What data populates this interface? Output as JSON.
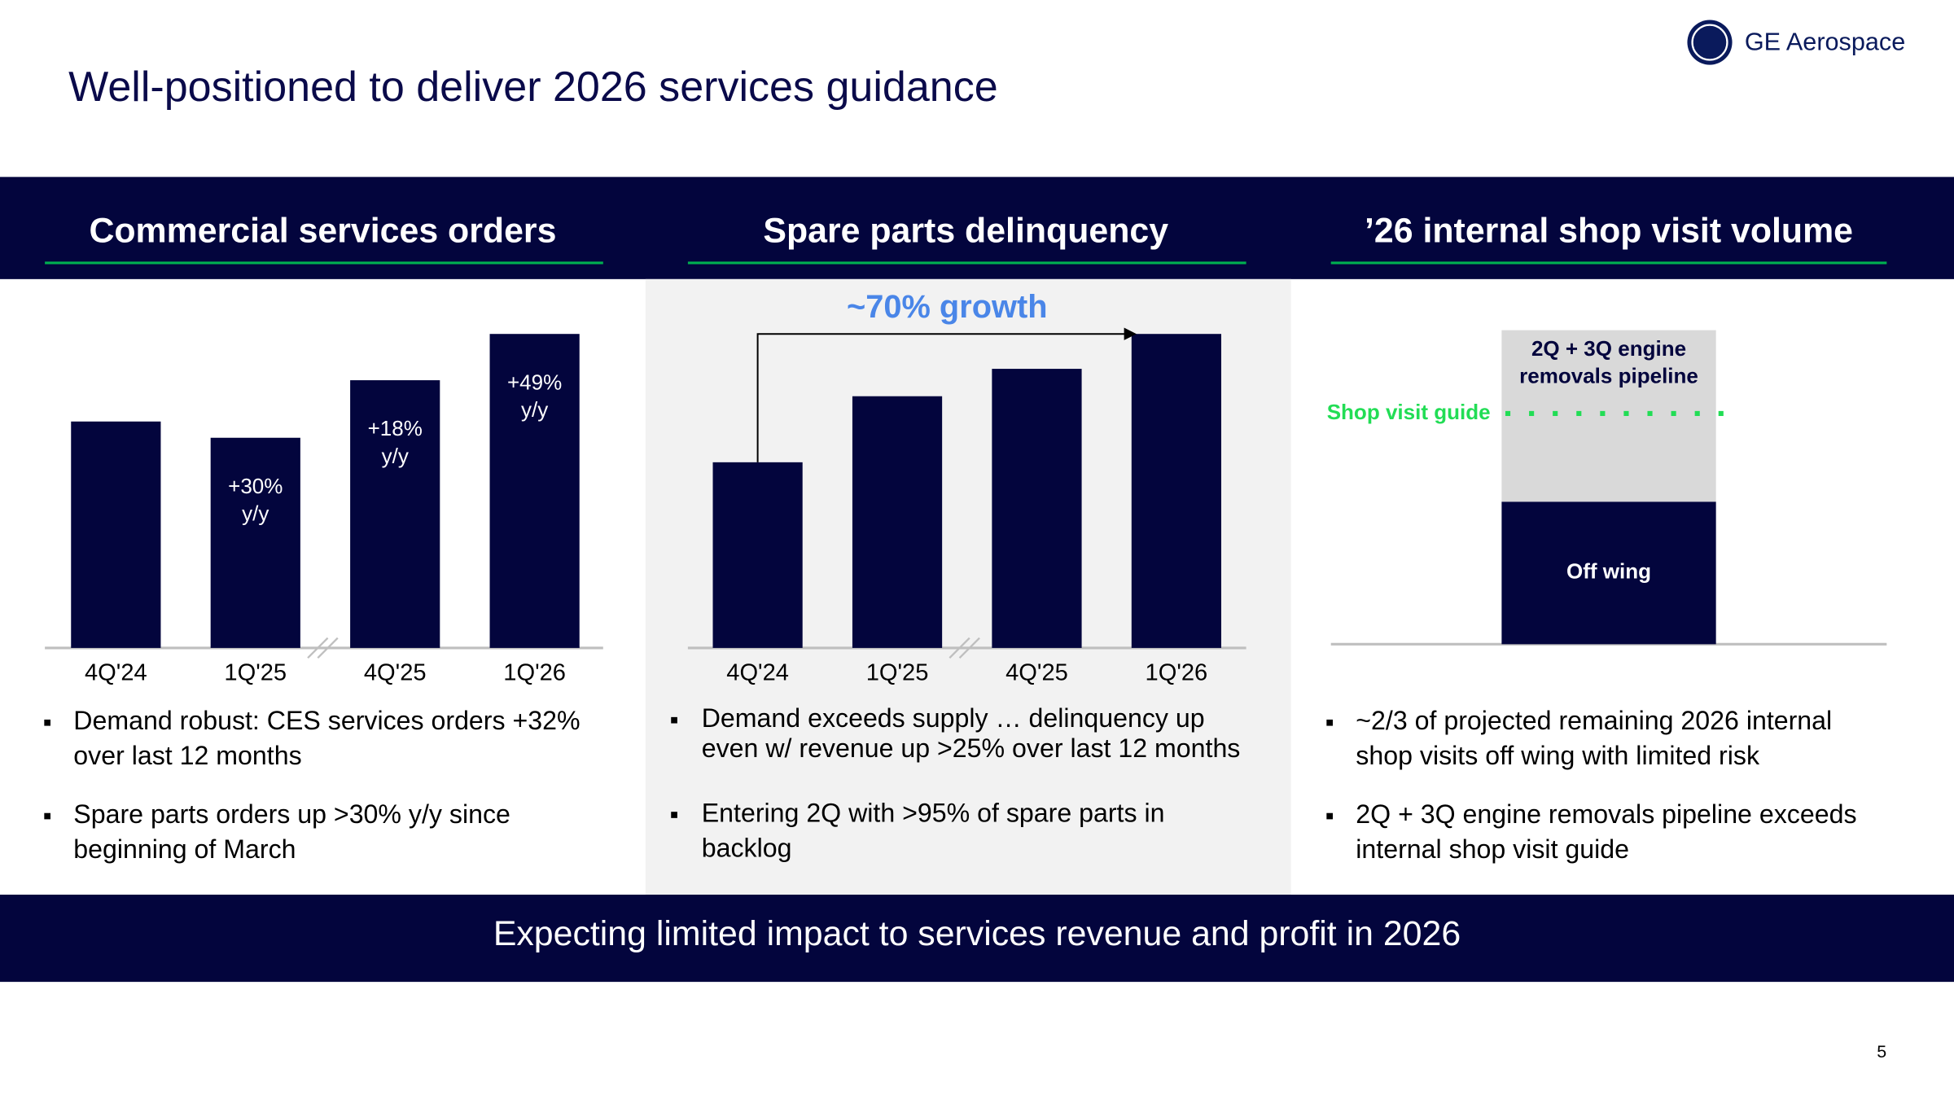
{
  "title": "Well-positioned to deliver 2026 services guidance",
  "logo": "GE Aerospace",
  "panels": [
    {
      "heading": "Commercial services orders",
      "chart": {
        "type": "bar",
        "categories": [
          "4Q'24",
          "1Q'25",
          "4Q'25",
          "1Q'26"
        ],
        "values": [
          181,
          168,
          214,
          251
        ],
        "color": "#03053d",
        "bar_notes": [
          null,
          [
            "+30%",
            "y/y"
          ],
          [
            "+18%",
            "y/y"
          ],
          [
            "+49%",
            "y/y"
          ]
        ]
      },
      "bullets": [
        [
          "Demand robust: CES services orders +32%",
          "over last 12 months"
        ],
        [
          "Spare parts orders up >30% y/y since",
          "beginning of March"
        ]
      ]
    },
    {
      "heading": "Spare parts delinquency",
      "chart": {
        "type": "bar",
        "categories": [
          "4Q'24",
          "1Q'25",
          "4Q'25",
          "1Q'26"
        ],
        "values": [
          149,
          202,
          224,
          252
        ],
        "color": "#03053d",
        "annotation": "~70% growth",
        "annotation_color": "#4a86e8"
      },
      "bullets": [
        [
          "Demand exceeds supply … delinquency up",
          "even w/ revenue up >25% over last 12 months"
        ],
        [
          "Entering 2Q with >95% of spare parts in",
          "backlog"
        ]
      ]
    },
    {
      "heading": "’26 internal shop visit volume",
      "chart": {
        "type": "stacked_bar",
        "series": [
          {
            "label": [
              "Off wing"
            ],
            "color": "#03053d",
            "values": [
              118
            ]
          },
          {
            "label": [
              "2Q + 3Q engine",
              "removals pipeline"
            ],
            "color": "#d9d9d9",
            "values": [
              142
            ]
          }
        ],
        "guide": {
          "label": "Shop visit guide",
          "value": 191,
          "color": "#22dd55"
        }
      },
      "bullets": [
        [
          "~2/3 of projected remaining 2026 internal",
          "shop visits off wing with limited risk"
        ],
        [
          "2Q + 3Q engine removals pipeline exceeds",
          "internal shop visit guide"
        ]
      ]
    }
  ],
  "footer": "Expecting limited impact to services revenue and profit in 2026",
  "page_number": "5"
}
